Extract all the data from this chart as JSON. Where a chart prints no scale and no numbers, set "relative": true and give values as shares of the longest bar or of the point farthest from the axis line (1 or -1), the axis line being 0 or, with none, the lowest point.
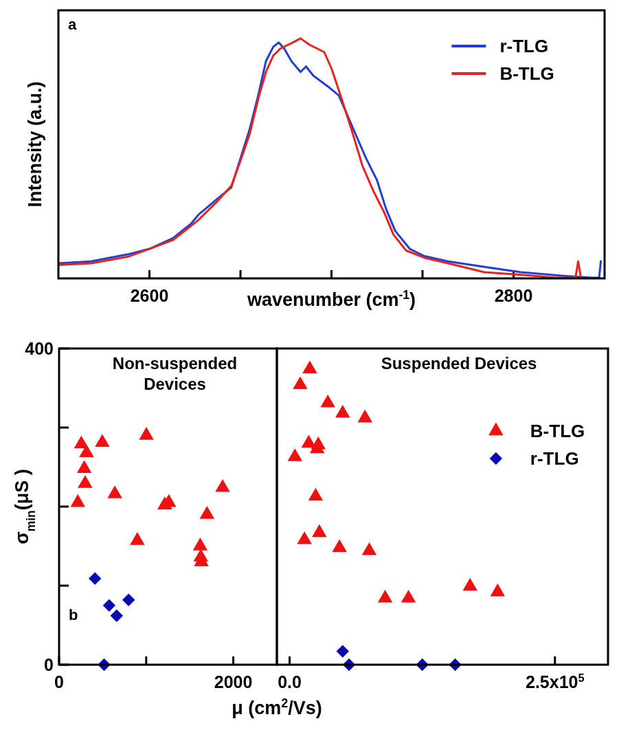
{
  "chart_data": [
    {
      "type": "line",
      "xlabel": "wavenumber (cm$^{-1}$)",
      "ylabel": "Intensity (a.u.)",
      "relative": true,
      "legend": "top right",
      "line_style": "solid",
      "annotations": [
        "a"
      ],
      "xlim": [
        2550,
        2850
      ],
      "xticks": [
        2600,
        {
          "value": 2650,
          "label": null
        },
        {
          "value": 2700,
          "label": null
        },
        {
          "value": 2750,
          "label": null
        },
        2800
      ],
      "series": [
        {
          "name": "r-TLG",
          "color": "#1f3fd6",
          "x": [
            2550,
            2568,
            2588,
            2600,
            2613,
            2623,
            2627,
            2637,
            2645,
            2650,
            2655,
            2660,
            2664,
            2668,
            2671,
            2674,
            2678,
            2683,
            2686,
            2690,
            2698,
            2704,
            2707,
            2713,
            2719,
            2725,
            2730,
            2735,
            2743,
            2751,
            2764,
            2784,
            2804,
            2827,
            2843,
            2847,
            2848
          ],
          "values": [
            0.063,
            0.071,
            0.1,
            0.123,
            0.168,
            0.229,
            0.266,
            0.33,
            0.379,
            0.5,
            0.62,
            0.77,
            0.905,
            0.965,
            0.983,
            0.958,
            0.905,
            0.86,
            0.883,
            0.845,
            0.8,
            0.762,
            0.71,
            0.605,
            0.5,
            0.409,
            0.289,
            0.198,
            0.123,
            0.093,
            0.071,
            0.048,
            0.026,
            0.011,
            0.003,
            0.003,
            0.075
          ]
        },
        {
          "name": "B-TLG",
          "color": "#e8221c",
          "x": [
            2550,
            2568,
            2588,
            2600,
            2613,
            2627,
            2637,
            2645,
            2650,
            2655,
            2660,
            2664,
            2668,
            2672,
            2678,
            2683,
            2688,
            2696,
            2700,
            2705,
            2711,
            2717,
            2723,
            2729,
            2734,
            2741,
            2751,
            2764,
            2784,
            2804,
            2823,
            2834,
            2835.5,
            2837
          ],
          "values": [
            0.056,
            0.063,
            0.09,
            0.123,
            0.16,
            0.244,
            0.319,
            0.386,
            0.49,
            0.6,
            0.755,
            0.86,
            0.928,
            0.958,
            0.98,
            1.0,
            0.973,
            0.943,
            0.875,
            0.762,
            0.62,
            0.469,
            0.364,
            0.274,
            0.183,
            0.116,
            0.086,
            0.063,
            0.026,
            0.015,
            0.003,
            0.003,
            0.071,
            0.003
          ]
        }
      ]
    },
    {
      "type": "scatter",
      "title": "Non-suspended Devices",
      "xlabel": "μ (cm$^{2}$/Vs)",
      "ylabel": "σ$_{min}$(μS )",
      "annotations": [
        "b"
      ],
      "xlim": [
        0,
        2500
      ],
      "xticks": [
        0,
        {
          "value": 1000,
          "label": null
        },
        2000
      ],
      "ylim": [
        0,
        400
      ],
      "yticks": [
        0,
        {
          "value": 100,
          "label": null
        },
        {
          "value": 200,
          "label": null
        },
        {
          "value": 300,
          "label": null
        },
        400
      ],
      "series": [
        {
          "color": "#ee1111",
          "marker": "triangle",
          "x": [
            255,
            496,
            315,
            1002,
            289,
            299,
            640,
            215,
            1213,
            1260,
            1877,
            1698,
            898,
            1620,
            1627,
            1633
          ],
          "values": [
            279,
            281,
            268,
            290,
            248,
            229,
            216,
            205,
            202,
            205,
            224,
            190,
            157,
            150,
            136,
            130
          ]
        },
        {
          "color": "#0a0ab0",
          "marker": "diamond",
          "x": [
            412,
            798,
            575,
            661,
            517
          ],
          "values": [
            109,
            82,
            75,
            62,
            0
          ]
        }
      ]
    },
    {
      "type": "scatter",
      "title": "Suspended Devices",
      "legend": "top right",
      "tick_labels": "x",
      "xlim": [
        -12000,
        300000
      ],
      "xticks": [
        {
          "value": 0,
          "label": "0.0"
        },
        {
          "value": 250000,
          "label": "2.5x10$^{5}$"
        }
      ],
      "ylim": [
        0,
        400
      ],
      "series": [
        {
          "name": "B-TLG",
          "color": "#ee1111",
          "marker": "triangle",
          "x": [
            19000,
            10000,
            36000,
            50000,
            71000,
            18000,
            27000,
            26000,
            5000,
            24500,
            14000,
            28000,
            47000,
            75000,
            90000,
            112000,
            170000,
            196000
          ],
          "values": [
            374,
            354,
            331,
            318,
            312,
            280,
            278,
            273,
            263,
            213,
            158,
            167,
            148,
            144,
            84,
            84,
            99,
            92
          ]
        },
        {
          "name": "r-TLG",
          "color": "#0a0ab0",
          "marker": "diamond",
          "x": [
            50000,
            56000,
            125000,
            156000
          ],
          "values": [
            17,
            0,
            0,
            0
          ]
        }
      ]
    }
  ]
}
